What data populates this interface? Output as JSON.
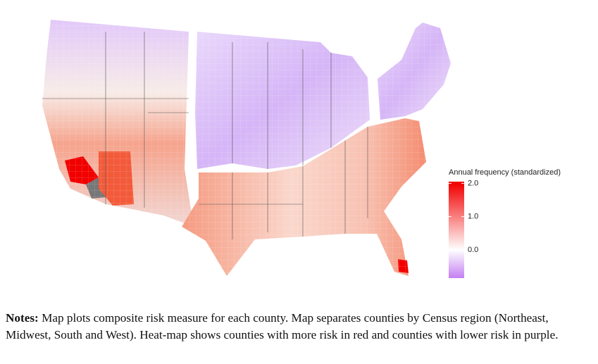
{
  "legend": {
    "title": "Annual frequency (standardized)",
    "lim": [
      -0.85,
      2.05
    ],
    "ticks": [
      {
        "value": 2,
        "label": "2.0"
      },
      {
        "value": 1,
        "label": "1.0"
      },
      {
        "value": 0,
        "label": "0.0"
      }
    ],
    "colors": [
      "#c47ff2",
      "#ffffff",
      "#f20000"
    ]
  },
  "notes": {
    "label": "Notes:",
    "text": "Map plots composite risk measure for each county. Map separates counties by Census region (Northeast, Midwest, South and West). Heat-map shows counties with more risk in red and counties with lower risk in purple."
  }
}
